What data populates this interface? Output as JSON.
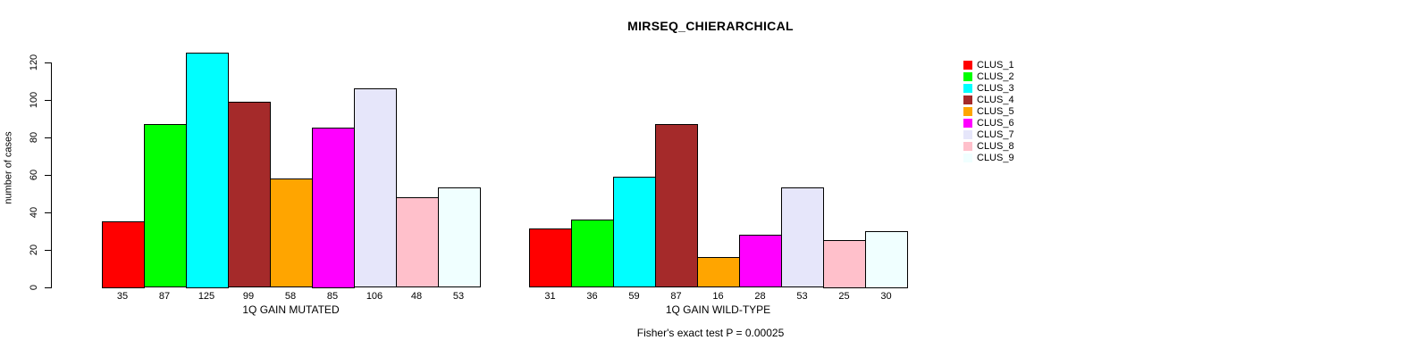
{
  "chart_data": {
    "type": "bar",
    "title": "MIRSEQ_CHIERARCHICAL",
    "ylabel": "number of cases",
    "ylim": [
      0,
      120
    ],
    "yticks": [
      0,
      20,
      40,
      60,
      80,
      100,
      120
    ],
    "grid": false,
    "legend_position": "right",
    "legend": [
      {
        "label": "CLUS_1",
        "color": "#FF0000"
      },
      {
        "label": "CLUS_2",
        "color": "#00FF00"
      },
      {
        "label": "CLUS_3",
        "color": "#00FFFF"
      },
      {
        "label": "CLUS_4",
        "color": "#A52A2A"
      },
      {
        "label": "CLUS_5",
        "color": "#FFA500"
      },
      {
        "label": "CLUS_6",
        "color": "#FF00FF"
      },
      {
        "label": "CLUS_7",
        "color": "#E6E6FA"
      },
      {
        "label": "CLUS_8",
        "color": "#FFC0CB"
      },
      {
        "label": "CLUS_9",
        "color": "#F0FFFF"
      }
    ],
    "panels": [
      {
        "xlabel": "1Q GAIN MUTATED",
        "categories": [
          "CLUS_1",
          "CLUS_2",
          "CLUS_3",
          "CLUS_4",
          "CLUS_5",
          "CLUS_6",
          "CLUS_7",
          "CLUS_8",
          "CLUS_9"
        ],
        "values": [
          35,
          87,
          125,
          99,
          58,
          85,
          106,
          48,
          53
        ],
        "bar_value_labels": [
          "35",
          "87",
          "125",
          "99",
          "58",
          "85",
          "106",
          "48",
          "53"
        ]
      },
      {
        "xlabel": "1Q GAIN WILD-TYPE",
        "categories": [
          "CLUS_1",
          "CLUS_2",
          "CLUS_3",
          "CLUS_4",
          "CLUS_5",
          "CLUS_6",
          "CLUS_7",
          "CLUS_8",
          "CLUS_9"
        ],
        "values": [
          31,
          36,
          59,
          87,
          16,
          28,
          53,
          25,
          30
        ],
        "bar_value_labels": [
          "31",
          "36",
          "59",
          "87",
          "16",
          "28",
          "53",
          "25",
          "30"
        ]
      }
    ],
    "annotation": "Fisher's exact test P = 0.00025"
  }
}
